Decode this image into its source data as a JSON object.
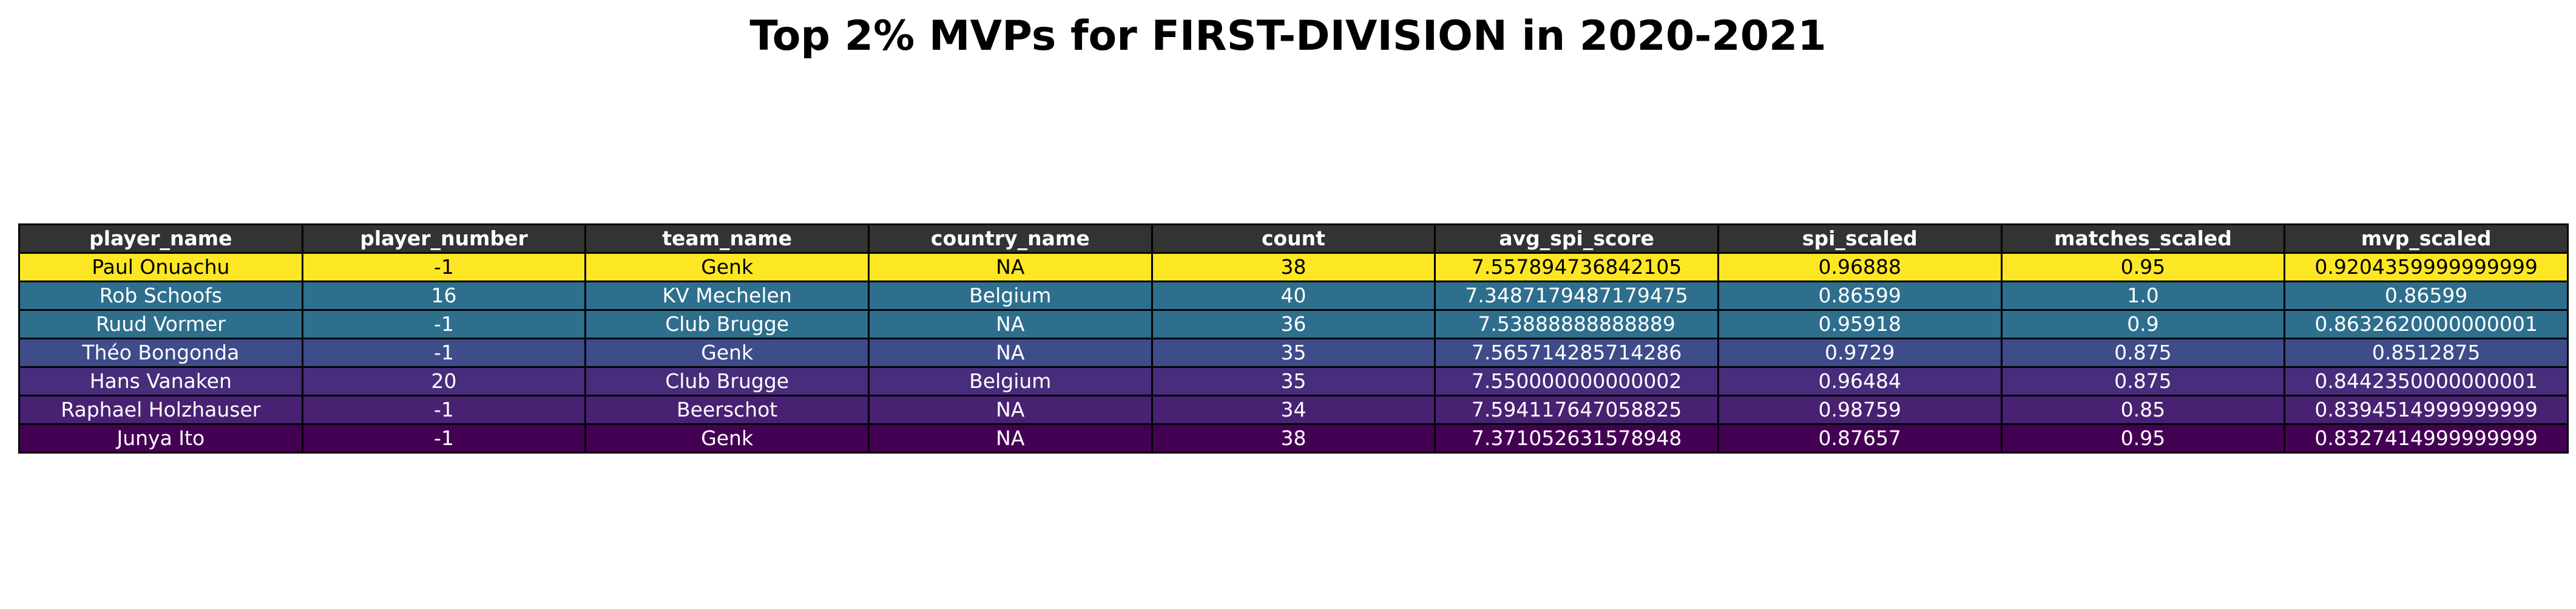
{
  "chart_data": {
    "type": "table",
    "title": "Top 2% MVPs for FIRST-DIVISION in 2020-2021",
    "columns": [
      "player_name",
      "player_number",
      "team_name",
      "country_name",
      "count",
      "avg_spi_score",
      "spi_scaled",
      "matches_scaled",
      "mvp_scaled"
    ],
    "rows": [
      [
        "Paul Onuachu",
        "-1",
        "Genk",
        "NA",
        "38",
        "7.557894736842105",
        "0.96888",
        "0.95",
        "0.9204359999999999"
      ],
      [
        "Rob Schoofs",
        "16",
        "KV Mechelen",
        "Belgium",
        "40",
        "7.3487179487179475",
        "0.86599",
        "1.0",
        "0.86599"
      ],
      [
        "Ruud Vormer",
        "-1",
        "Club Brugge",
        "NA",
        "36",
        "7.53888888888889",
        "0.95918",
        "0.9",
        "0.8632620000000001"
      ],
      [
        "Théo Bongonda",
        "-1",
        "Genk",
        "NA",
        "35",
        "7.565714285714286",
        "0.9729",
        "0.875",
        "0.8512875"
      ],
      [
        "Hans Vanaken",
        "20",
        "Club Brugge",
        "Belgium",
        "35",
        "7.550000000000002",
        "0.96484",
        "0.875",
        "0.8442350000000001"
      ],
      [
        "Raphael Holzhauser",
        "-1",
        "Beerschot",
        "NA",
        "34",
        "7.594117647058825",
        "0.98759",
        "0.85",
        "0.8394514999999999"
      ],
      [
        "Junya Ito",
        "-1",
        "Genk",
        "NA",
        "38",
        "7.371052631578948",
        "0.87657",
        "0.95",
        "0.8327414999999999"
      ]
    ],
    "colors": {
      "header_bg": "#333333",
      "header_text": "#ffffff",
      "row_bg": [
        "#fde725",
        "#2e6f8e",
        "#2e6f8e",
        "#3e4c8a",
        "#472d7b",
        "#482173",
        "#440154"
      ],
      "row_text": [
        "#000000",
        "#ffffff",
        "#ffffff",
        "#ffffff",
        "#ffffff",
        "#ffffff",
        "#ffffff"
      ]
    }
  }
}
